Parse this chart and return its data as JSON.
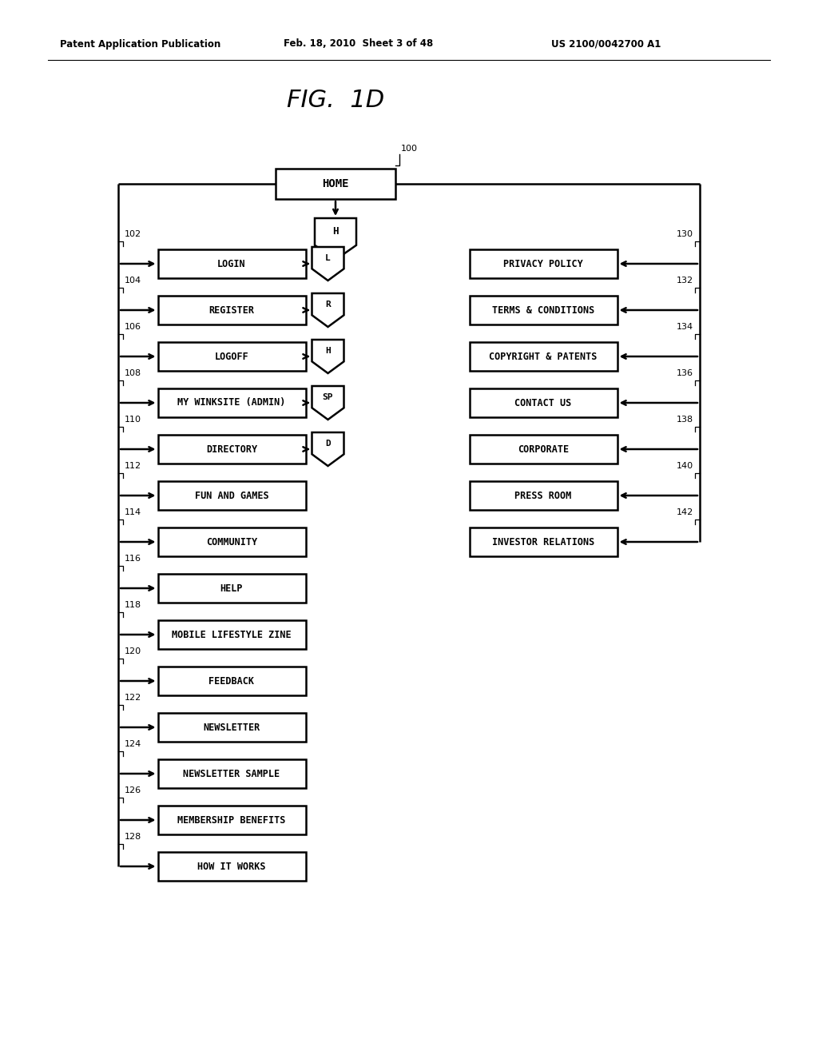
{
  "title": "FIG.  1D",
  "header_left": "Patent Application Publication",
  "header_mid": "Feb. 18, 2010  Sheet 3 of 48",
  "header_right": "US 2100/0042700 A1",
  "home_label": "100",
  "home_text": "HOME",
  "home_badge": "H",
  "left_items": [
    {
      "num": "102",
      "text": "LOGIN",
      "badge": "L"
    },
    {
      "num": "104",
      "text": "REGISTER",
      "badge": "R"
    },
    {
      "num": "106",
      "text": "LOGOFF",
      "badge": "H"
    },
    {
      "num": "108",
      "text": "MY WINKSITE (ADMIN)",
      "badge": "SP"
    },
    {
      "num": "110",
      "text": "DIRECTORY",
      "badge": "D"
    },
    {
      "num": "112",
      "text": "FUN AND GAMES",
      "badge": null
    },
    {
      "num": "114",
      "text": "COMMUNITY",
      "badge": null
    },
    {
      "num": "116",
      "text": "HELP",
      "badge": null
    },
    {
      "num": "118",
      "text": "MOBILE LIFESTYLE ZINE",
      "badge": null
    },
    {
      "num": "120",
      "text": "FEEDBACK",
      "badge": null
    },
    {
      "num": "122",
      "text": "NEWSLETTER",
      "badge": null
    },
    {
      "num": "124",
      "text": "NEWSLETTER SAMPLE",
      "badge": null
    },
    {
      "num": "126",
      "text": "MEMBERSHIP BENEFITS",
      "badge": null
    },
    {
      "num": "128",
      "text": "HOW IT WORKS",
      "badge": null
    }
  ],
  "right_items": [
    {
      "num": "130",
      "text": "PRIVACY POLICY"
    },
    {
      "num": "132",
      "text": "TERMS & CONDITIONS"
    },
    {
      "num": "134",
      "text": "COPYRIGHT & PATENTS"
    },
    {
      "num": "136",
      "text": "CONTACT US"
    },
    {
      "num": "138",
      "text": "CORPORATE"
    },
    {
      "num": "140",
      "text": "PRESS ROOM"
    },
    {
      "num": "142",
      "text": "INVESTOR RELATIONS"
    }
  ],
  "bg_color": "#ffffff",
  "line_color": "#000000",
  "figsize": [
    10.24,
    13.2
  ],
  "dpi": 100
}
